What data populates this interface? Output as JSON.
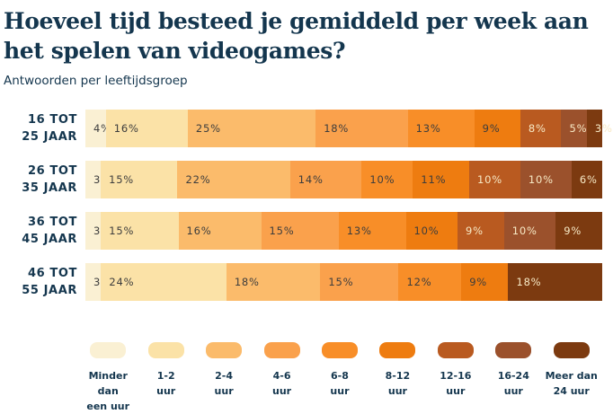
{
  "title": "Hoeveel tijd besteed je gemiddeld per week aan het spelen van videogames?",
  "subtitle": "Antwoorden per leeftijdsgroep",
  "colors": {
    "text_navy": "#14364E",
    "segment_label_dark": "#3D3D3D",
    "segment_label_light": "#F7E9C5",
    "background": "#FFFFFF"
  },
  "chart_data": {
    "type": "bar",
    "stacked": true,
    "orientation": "horizontal",
    "title": "Hoeveel tijd besteed je gemiddeld per week aan het spelen van videogames?",
    "subtitle": "Antwoorden per leeftijdsgroep",
    "value_unit": "%",
    "legend_position": "bottom",
    "categories": [
      {
        "name": "16 tot 25 jaar",
        "line1": "16 TOT",
        "line2": "25 JAAR"
      },
      {
        "name": "26 tot 35 jaar",
        "line1": "26 TOT",
        "line2": "35 JAAR"
      },
      {
        "name": "36 tot 45 jaar",
        "line1": "36 TOT",
        "line2": "45 JAAR"
      },
      {
        "name": "46 tot 55 jaar",
        "line1": "46 TOT",
        "line2": "55 JAAR"
      }
    ],
    "series": [
      {
        "name": "Minder dan een uur",
        "legend_lines": "Minder dan\neen uur",
        "color": "#FAF0D3",
        "label_style": "dark",
        "values": [
          4,
          3,
          3,
          3
        ]
      },
      {
        "name": "1-2 uur",
        "legend_lines": "1-2\nuur",
        "color": "#FBE2A7",
        "label_style": "dark",
        "values": [
          16,
          15,
          15,
          24
        ]
      },
      {
        "name": "2-4 uur",
        "legend_lines": "2-4\nuur",
        "color": "#FBBB6B",
        "label_style": "dark",
        "values": [
          25,
          22,
          16,
          18
        ]
      },
      {
        "name": "4-6 uur",
        "legend_lines": "4-6\nuur",
        "color": "#FAA14C",
        "label_style": "dark",
        "values": [
          18,
          14,
          15,
          15
        ]
      },
      {
        "name": "6-8 uur",
        "legend_lines": "6-8\nuur",
        "color": "#F88E28",
        "label_style": "dark",
        "values": [
          13,
          10,
          13,
          12
        ]
      },
      {
        "name": "8-12 uur",
        "legend_lines": "8-12\nuur",
        "color": "#EE7C10",
        "label_style": "dark",
        "values": [
          9,
          11,
          10,
          9
        ]
      },
      {
        "name": "12-16 uur",
        "legend_lines": "12-16\nuur",
        "color": "#B95A20",
        "label_style": "light",
        "values": [
          8,
          10,
          9,
          0
        ]
      },
      {
        "name": "16-24 uur",
        "legend_lines": "16-24\nuur",
        "color": "#9B512C",
        "label_style": "light",
        "values": [
          5,
          10,
          10,
          0
        ]
      },
      {
        "name": "Meer dan 24 uur",
        "legend_lines": "Meer dan\n24 uur",
        "color": "#7C3A10",
        "label_style": "light",
        "values": [
          3,
          6,
          9,
          18
        ]
      }
    ]
  }
}
